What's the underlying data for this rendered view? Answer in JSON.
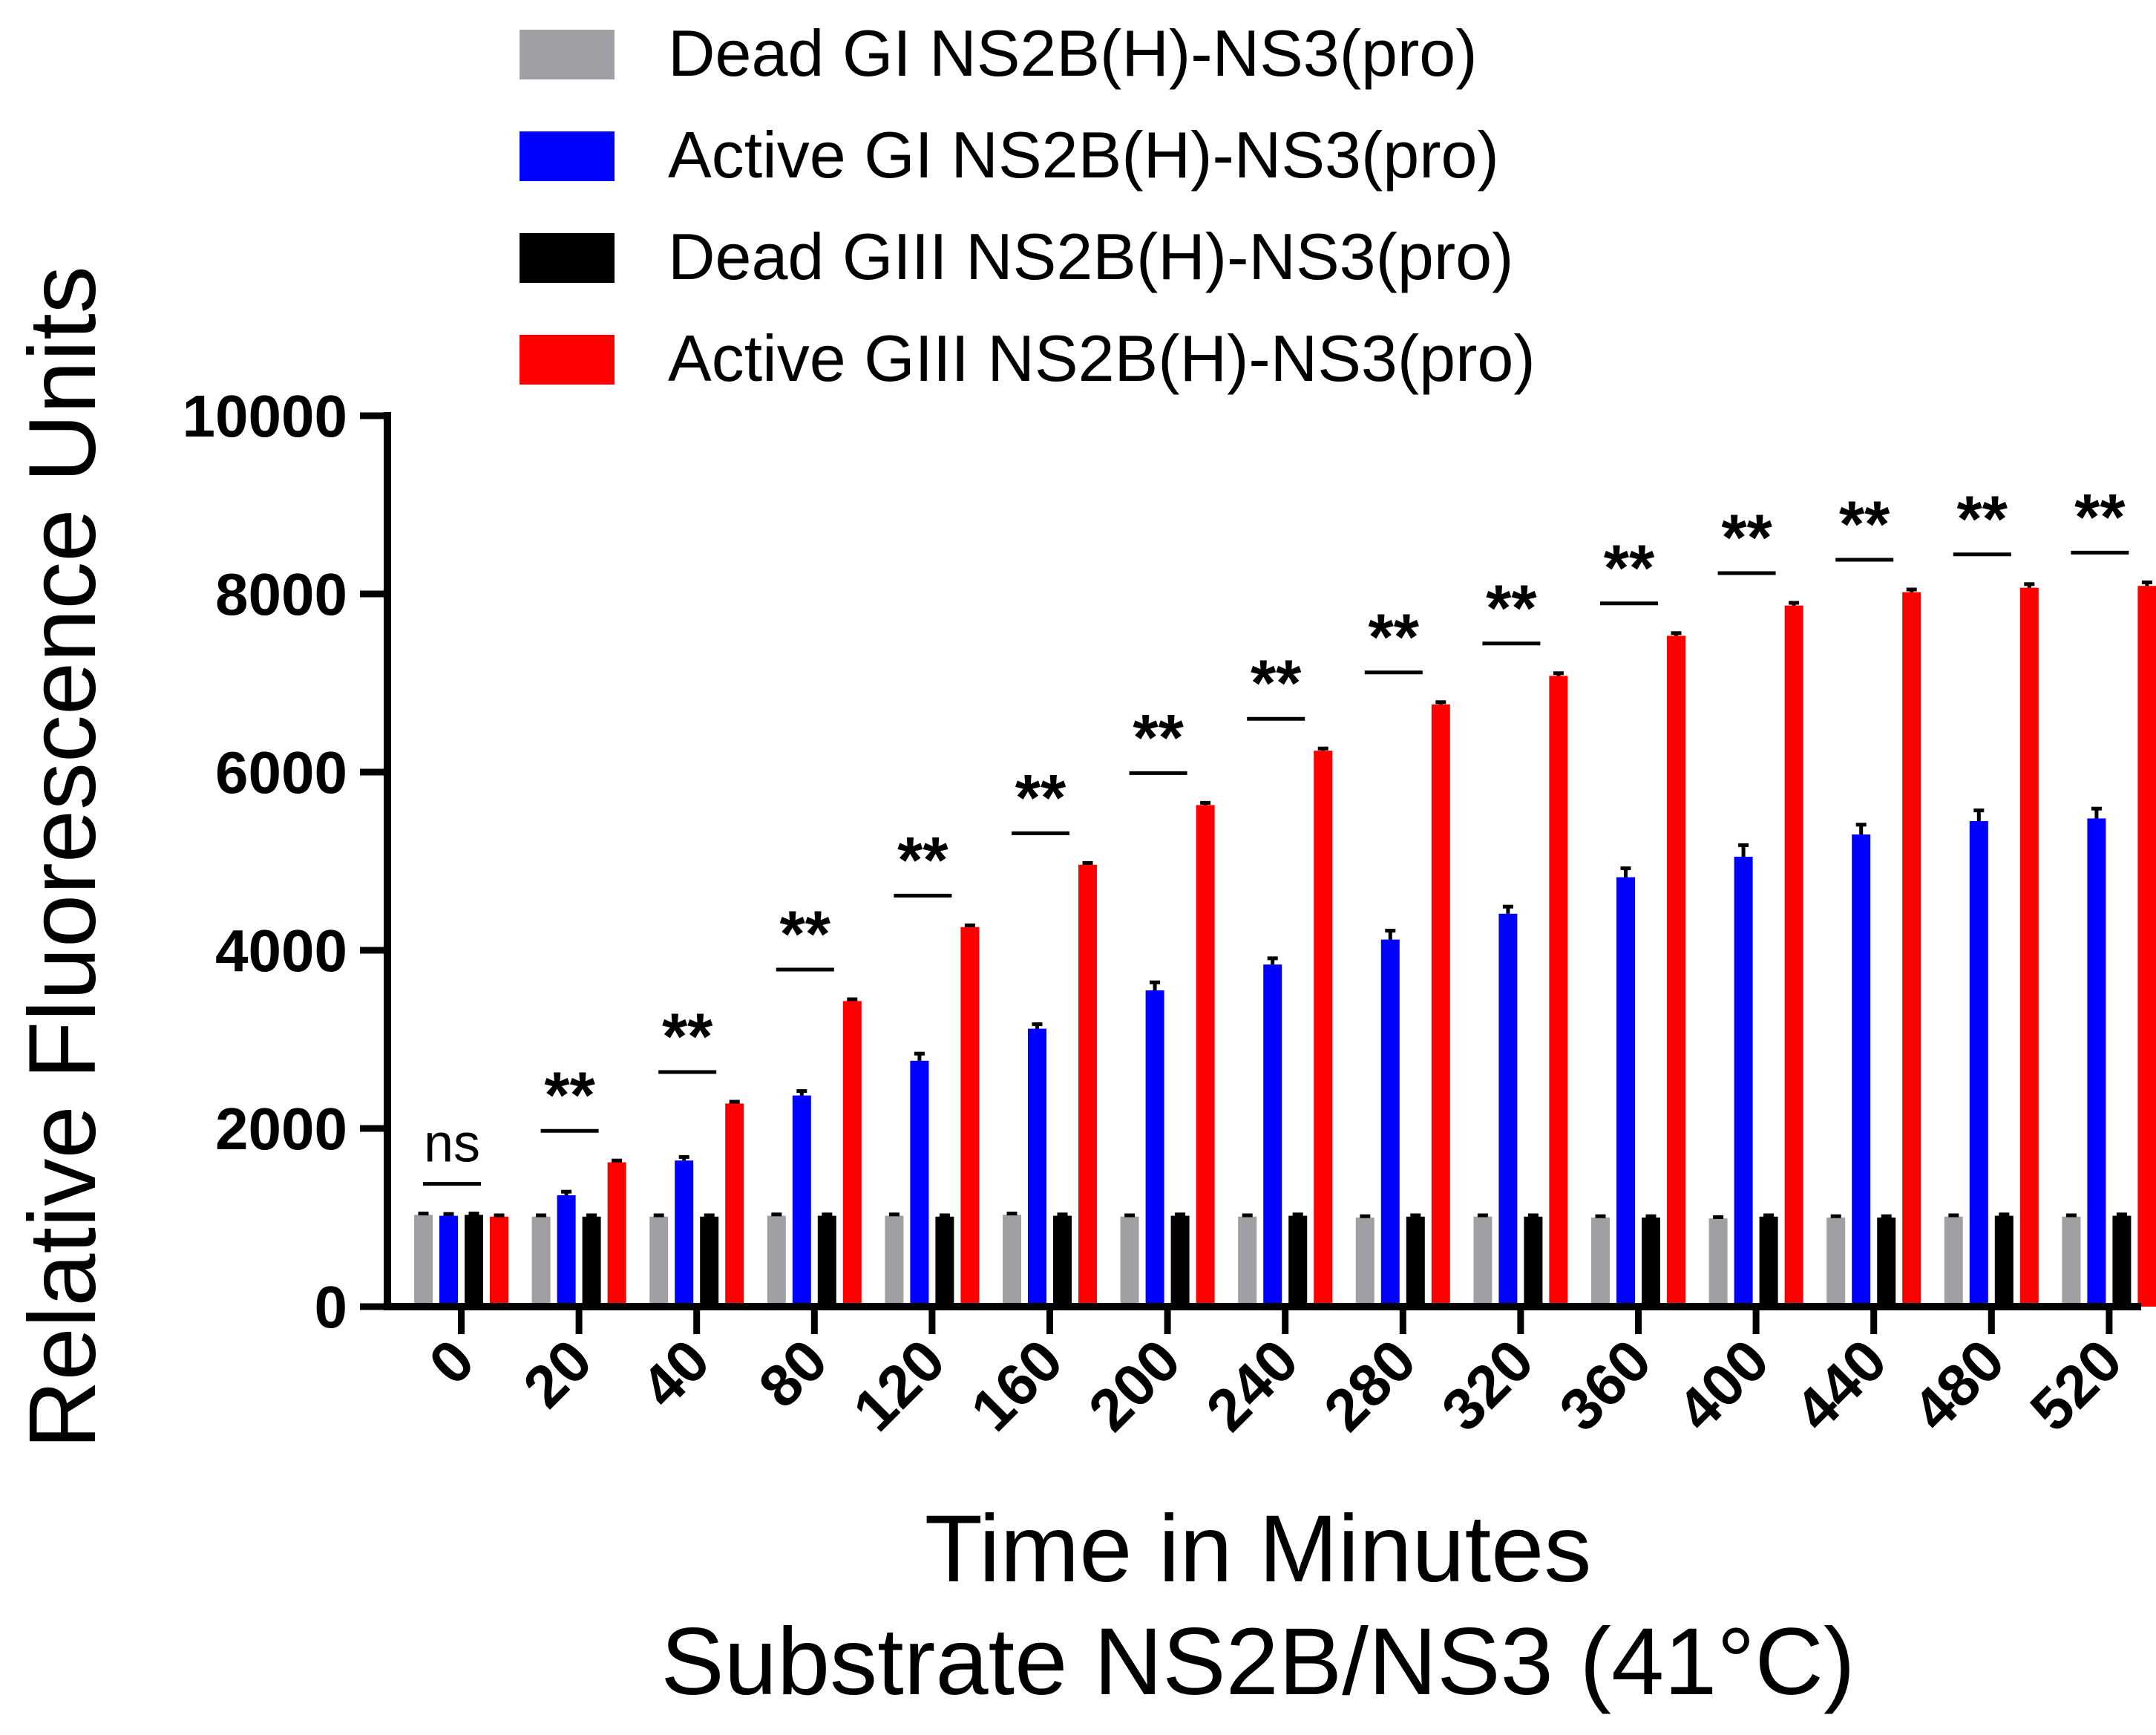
{
  "chart_data": {
    "type": "bar",
    "title": "",
    "xlabel_lines": [
      "Time in Minutes",
      "Substrate NS2B/NS3 (41°C)"
    ],
    "ylabel": "Relative Fluorescence Units",
    "ylim": [
      0,
      10000
    ],
    "yticks": [
      0,
      2000,
      4000,
      6000,
      8000,
      10000
    ],
    "ytick_labels": [
      "0",
      "2000",
      "4000",
      "6000",
      "8000",
      "10000"
    ],
    "categories": [
      "0",
      "20",
      "40",
      "80",
      "120",
      "160",
      "200",
      "240",
      "280",
      "320",
      "360",
      "400",
      "440",
      "480",
      "520"
    ],
    "legend_position": "top",
    "series": [
      {
        "name": "Dead GI NS2B(H)-NS3(pro)",
        "color": "#a0a0a4",
        "values": [
          1030,
          1010,
          1010,
          1020,
          1020,
          1030,
          1010,
          1010,
          1000,
          1010,
          1000,
          990,
          1000,
          1010,
          1010
        ],
        "errors": [
          15,
          15,
          15,
          15,
          15,
          15,
          15,
          15,
          15,
          15,
          15,
          15,
          15,
          15,
          15
        ]
      },
      {
        "name": "Active GI NS2B(H)-NS3(pro)",
        "color": "#0000ff",
        "values": [
          1020,
          1250,
          1640,
          2370,
          2760,
          3120,
          3550,
          3840,
          4120,
          4410,
          4820,
          5050,
          5300,
          5450,
          5480
        ],
        "errors": [
          20,
          40,
          40,
          50,
          80,
          50,
          90,
          70,
          100,
          80,
          100,
          130,
          110,
          120,
          110
        ]
      },
      {
        "name": "Dead GIII NS2B(H)-NS3(pro)",
        "color": "#000000",
        "values": [
          1030,
          1010,
          1010,
          1020,
          1010,
          1020,
          1020,
          1020,
          1010,
          1010,
          1000,
          1010,
          1000,
          1020,
          1020
        ],
        "errors": [
          15,
          15,
          15,
          15,
          15,
          15,
          15,
          15,
          15,
          15,
          15,
          15,
          15,
          15,
          15
        ]
      },
      {
        "name": "Active GIII NS2B(H)-NS3(pro)",
        "color": "#ff0000",
        "values": [
          1010,
          1620,
          2280,
          3430,
          4260,
          4960,
          5630,
          6240,
          6760,
          7080,
          7530,
          7870,
          8020,
          8070,
          8090
        ],
        "errors": [
          15,
          20,
          20,
          20,
          20,
          20,
          25,
          25,
          25,
          30,
          30,
          30,
          30,
          40,
          40
        ]
      }
    ],
    "annotations": {
      "significance": [
        "ns",
        "**",
        "**",
        "**",
        "**",
        "**",
        "**",
        "**",
        "**",
        "**",
        "**",
        "**",
        "**",
        "**",
        "**"
      ]
    }
  }
}
